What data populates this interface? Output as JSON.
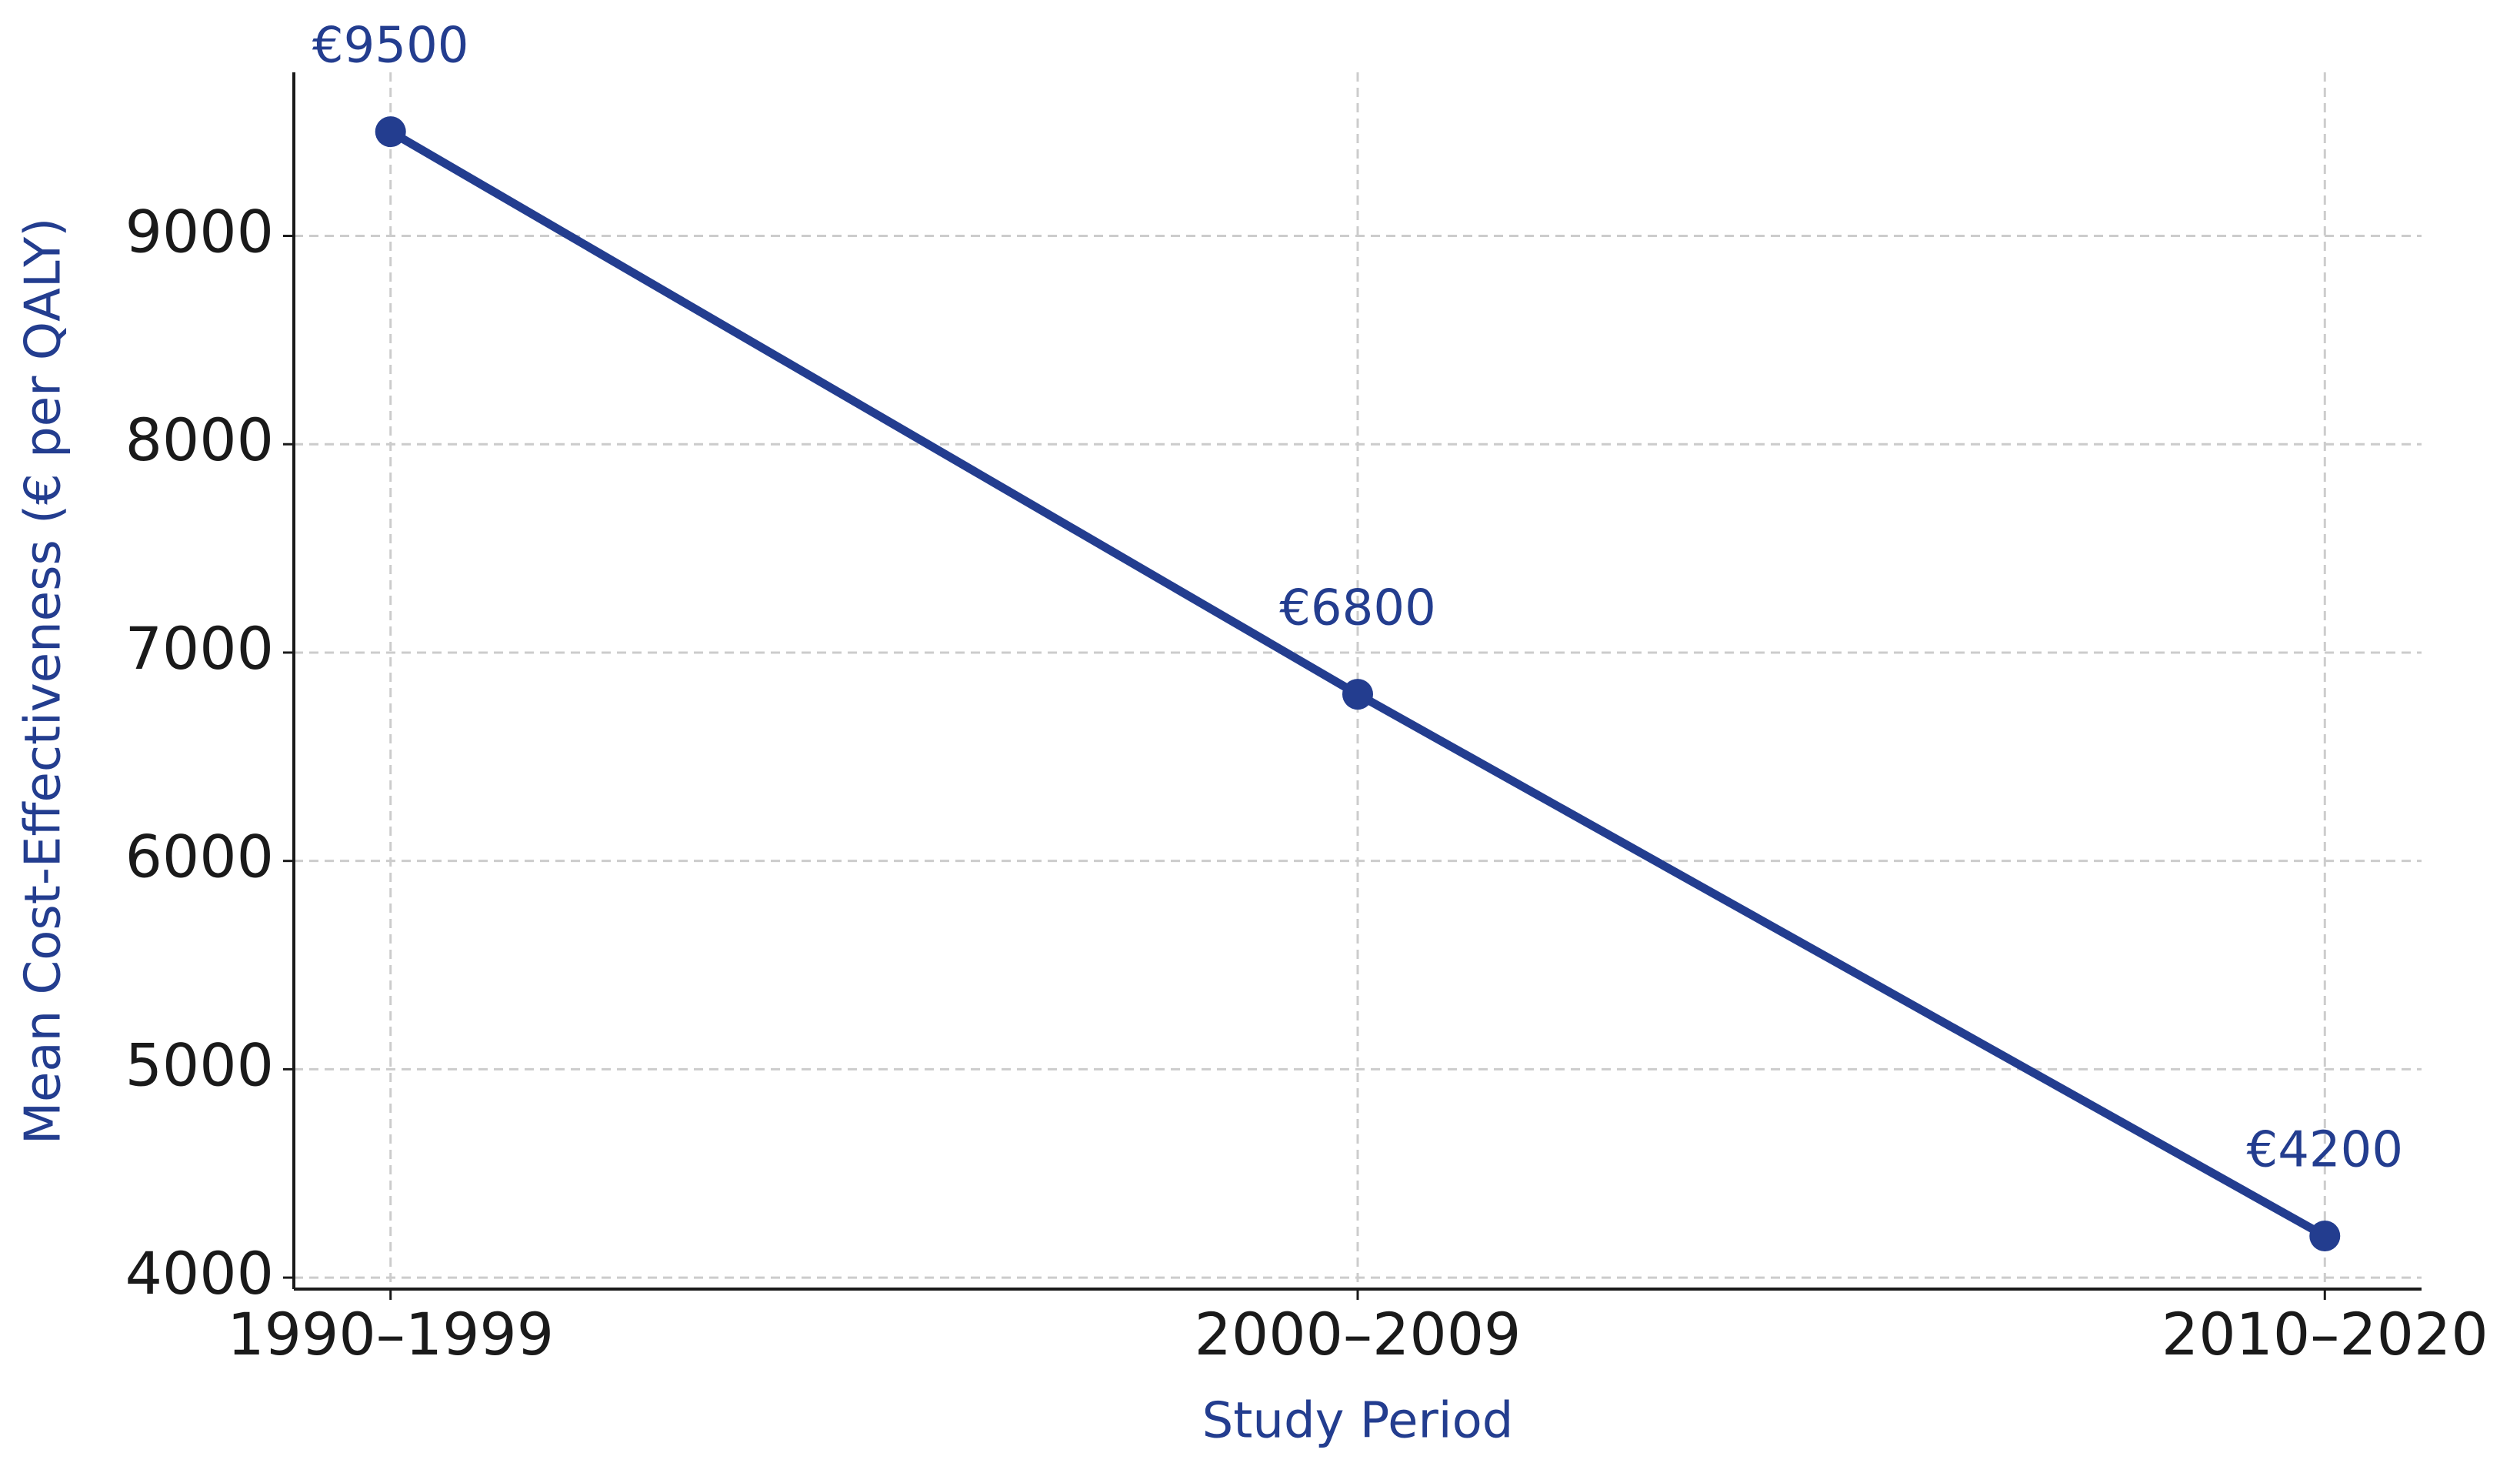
{
  "chart_data": {
    "type": "line",
    "x_label": "Study Period",
    "y_label": "Mean Cost-Effectiveness (€ per QALY)",
    "categories": [
      "1990–1999",
      "2000–2009",
      "2010–2020"
    ],
    "values": [
      9500,
      6800,
      4200
    ],
    "value_labels": [
      "€9500",
      "€6800",
      "€4200"
    ],
    "color": "#233d8f",
    "ylim": [
      3945,
      9785
    ],
    "yticks": [
      4000,
      5000,
      6000,
      7000,
      8000,
      9000
    ],
    "grid": true
  }
}
